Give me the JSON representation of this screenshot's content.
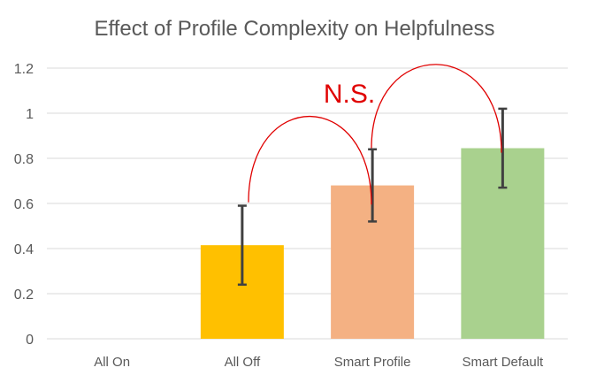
{
  "chart_data": {
    "type": "bar",
    "title": "Effect of Profile Complexity on Helpfulness",
    "xlabel": "",
    "ylabel": "",
    "categories": [
      "All On",
      "All Off",
      "Smart Profile",
      "Smart Default"
    ],
    "values": [
      0,
      0.415,
      0.68,
      0.845
    ],
    "error_low": [
      0,
      0.24,
      0.52,
      0.67
    ],
    "error_high": [
      0,
      0.59,
      0.84,
      1.02
    ],
    "ylim": [
      0,
      1.2
    ],
    "yticks": [
      0,
      0.2,
      0.4,
      0.6,
      0.8,
      1,
      1.2
    ],
    "ytick_labels": [
      "0",
      "0.2",
      "0.4",
      "0.6",
      "0.8",
      "1",
      "1.2"
    ],
    "grid": true,
    "legend": "none",
    "bar_colors": [
      "#ffffff",
      "#ffc000",
      "#f4b183",
      "#a9d18e"
    ],
    "error_bar_color": "#404040",
    "grid_color": "#d9d9d9",
    "text_color": "#595959",
    "annotation": {
      "text": "N.S.",
      "color": "#e00000",
      "arcs": [
        {
          "from": "All Off",
          "to": "Smart Profile"
        },
        {
          "from": "Smart Profile",
          "to": "Smart Default"
        }
      ]
    }
  }
}
